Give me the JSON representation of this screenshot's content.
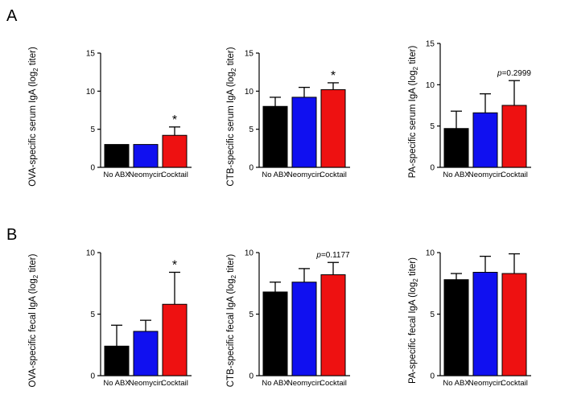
{
  "panel_labels": [
    "A",
    "B"
  ],
  "chart_data": [
    {
      "type": "bar",
      "panel": "A",
      "ylabel_pre": "OVA-specific serum IgA (log",
      "ylabel_sub": "2",
      "ylabel_post": " titer)",
      "categories": [
        "No ABX",
        "Neomycin",
        "Cocktail"
      ],
      "values": [
        3.0,
        3.0,
        4.2
      ],
      "errors": [
        0,
        0,
        1.1
      ],
      "ylim": [
        0,
        15
      ],
      "yticks": [
        0,
        5,
        10,
        15
      ],
      "annotation": "*",
      "annotation_index": 2
    },
    {
      "type": "bar",
      "panel": "A",
      "ylabel_pre": "CTB-specific serum IgA (log",
      "ylabel_sub": "2",
      "ylabel_post": " titer)",
      "categories": [
        "No ABX",
        "Neomycin",
        "Cocktail"
      ],
      "values": [
        8.0,
        9.2,
        10.2
      ],
      "errors": [
        1.2,
        1.3,
        0.9
      ],
      "ylim": [
        0,
        15
      ],
      "yticks": [
        0,
        5,
        10,
        15
      ],
      "annotation": "*",
      "annotation_index": 2
    },
    {
      "type": "bar",
      "panel": "A",
      "ylabel_pre": "PA-specific serum IgA (log",
      "ylabel_sub": "2",
      "ylabel_post": " titer)",
      "categories": [
        "No ABX",
        "Neomycin",
        "Cocktail"
      ],
      "values": [
        4.7,
        6.6,
        7.5
      ],
      "errors": [
        2.1,
        2.3,
        3.0
      ],
      "ylim": [
        0,
        15
      ],
      "yticks": [
        0,
        5,
        10,
        15
      ],
      "annotation_p": "p",
      "annotation_val": "=0.2999",
      "annotation_index": 2
    },
    {
      "type": "bar",
      "panel": "B",
      "ylabel_pre": "OVA-specific fecal IgA (log",
      "ylabel_sub": "2",
      "ylabel_post": " titer)",
      "categories": [
        "No ABX",
        "Neomycin",
        "Cocktail"
      ],
      "values": [
        2.4,
        3.6,
        5.8
      ],
      "errors": [
        1.7,
        0.9,
        2.6
      ],
      "ylim": [
        0,
        10
      ],
      "yticks": [
        0,
        5,
        10
      ],
      "annotation": "*",
      "annotation_index": 2
    },
    {
      "type": "bar",
      "panel": "B",
      "ylabel_pre": "CTB-specific fecal IgA (log",
      "ylabel_sub": "2",
      "ylabel_post": " titer)",
      "categories": [
        "No ABX",
        "Neomycin",
        "Cocktail"
      ],
      "values": [
        6.8,
        7.6,
        8.2
      ],
      "errors": [
        0.8,
        1.1,
        1.0
      ],
      "ylim": [
        0,
        10
      ],
      "yticks": [
        0,
        5,
        10
      ],
      "annotation_p": "p",
      "annotation_val": "=0.1177",
      "annotation_index": 2
    },
    {
      "type": "bar",
      "panel": "B",
      "ylabel_pre": "PA-specific fecal IgA (log",
      "ylabel_sub": "2",
      "ylabel_post": " titer)",
      "categories": [
        "No ABX",
        "Neomycin",
        "Cocktail"
      ],
      "values": [
        7.8,
        8.4,
        8.3
      ],
      "errors": [
        0.5,
        1.3,
        1.6
      ],
      "ylim": [
        0,
        10
      ],
      "yticks": [
        0,
        5,
        10
      ]
    }
  ],
  "colors": {
    "bars": [
      "#000000",
      "#1010f0",
      "#ee1111"
    ],
    "axis": "#000000"
  }
}
